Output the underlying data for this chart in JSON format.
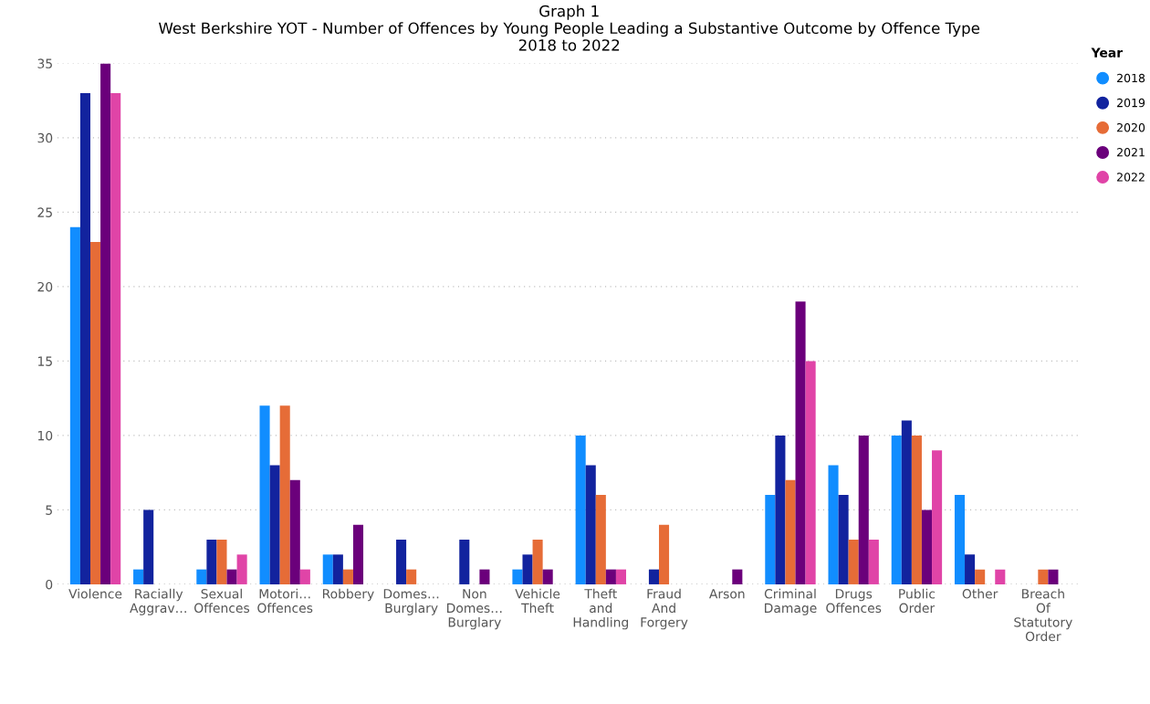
{
  "chart_data": {
    "type": "bar",
    "title": "Graph 1\nWest Berkshire YOT - Number of Offences by Young People Leading a Substantive Outcome by Offence Type\n2018 to 2022",
    "categories": [
      "Violence",
      "Racially Aggrav…",
      "Sexual Offences",
      "Motori… Offences",
      "Robbery",
      "Domes… Burglary",
      "Non Domes… Burglary",
      "Vehicle Theft",
      "Theft and Handling",
      "Fraud And Forgery",
      "Arson",
      "Criminal Damage",
      "Drugs Offences",
      "Public Order",
      "Other",
      "Breach Of Statutory Order"
    ],
    "series": [
      {
        "name": "2018",
        "color": "#118dff",
        "values": [
          24,
          1,
          1,
          12,
          2,
          null,
          null,
          1,
          10,
          null,
          null,
          6,
          8,
          10,
          6,
          null
        ]
      },
      {
        "name": "2019",
        "color": "#12239e",
        "values": [
          33,
          5,
          3,
          8,
          2,
          3,
          3,
          2,
          8,
          1,
          null,
          10,
          6,
          11,
          2,
          null
        ]
      },
      {
        "name": "2020",
        "color": "#e66c37",
        "values": [
          23,
          null,
          3,
          12,
          1,
          1,
          null,
          3,
          6,
          4,
          null,
          7,
          3,
          10,
          1,
          1
        ]
      },
      {
        "name": "2021",
        "color": "#6b007b",
        "values": [
          35,
          null,
          1,
          7,
          4,
          null,
          1,
          1,
          1,
          null,
          1,
          19,
          10,
          5,
          null,
          1
        ]
      },
      {
        "name": "2022",
        "color": "#e044a7",
        "values": [
          33,
          null,
          2,
          1,
          null,
          null,
          null,
          null,
          1,
          null,
          null,
          15,
          3,
          9,
          1,
          null
        ]
      }
    ],
    "legend_title": "Year",
    "legend": "top right",
    "ylim": [
      0,
      35
    ],
    "yticks": [
      0,
      5,
      10,
      15,
      20,
      25,
      30,
      35
    ],
    "grid": "y"
  }
}
